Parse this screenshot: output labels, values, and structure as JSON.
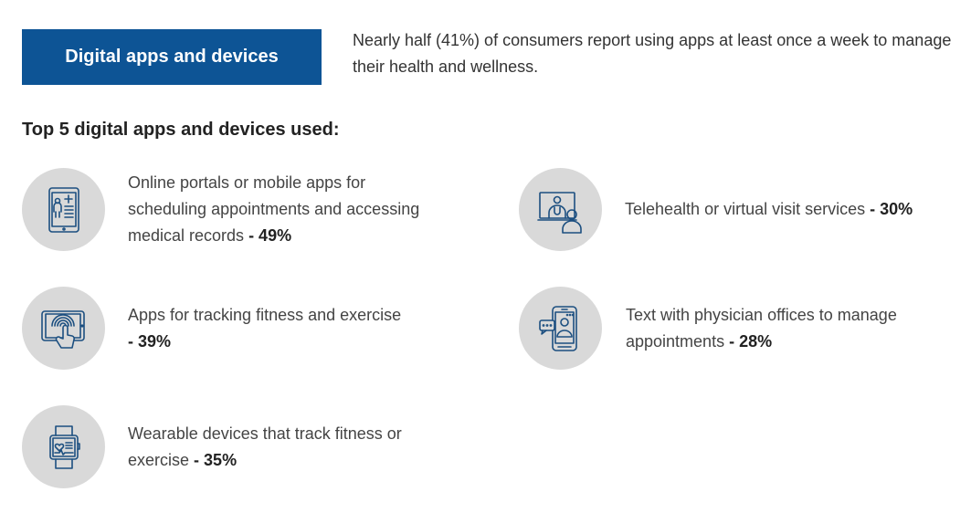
{
  "header": {
    "badge_label": "Digital apps and devices",
    "intro_text": "Nearly half (41%) of consumers report using apps at least once a week to manage their health and wellness."
  },
  "subheading": "Top 5 digital apps and devices used:",
  "colors": {
    "badge_bg": "#0d5495",
    "icon_circle": "#d9d9d9",
    "icon_stroke": "#1c4f80"
  },
  "items": [
    {
      "icon": "tablet-medical-record-icon",
      "text": "Online portals or mobile apps for scheduling appointments and accessing medical records",
      "value": "- 49%"
    },
    {
      "icon": "tablet-fingerprint-touch-icon",
      "text": "Apps for tracking fitness and exercise",
      "value": "- 39%"
    },
    {
      "icon": "smartwatch-heart-icon",
      "text": "Wearable devices that track fitness or exercise",
      "value": "- 35%"
    },
    {
      "icon": "telehealth-video-call-icon",
      "text": "Telehealth or virtual visit services",
      "value": "- 30%"
    },
    {
      "icon": "phone-chat-icon",
      "text": "Text with physician offices to manage appointments",
      "value": "- 28%"
    }
  ]
}
